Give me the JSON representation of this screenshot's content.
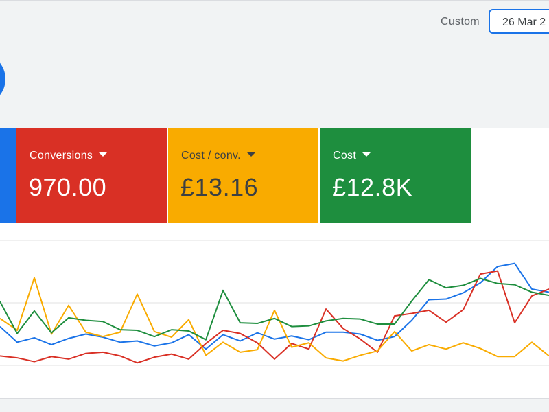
{
  "header": {
    "date_mode_label": "Custom",
    "date_range_value": "26 Mar 2"
  },
  "scorecards": [
    {
      "label": "",
      "value": "",
      "color": "#1a73e8"
    },
    {
      "label": "Conversions",
      "value": "970.00",
      "color": "#d93025"
    },
    {
      "label": "Cost / conv.",
      "value": "£13.16",
      "color": "#f9ab00"
    },
    {
      "label": "Cost",
      "value": "£12.8K",
      "color": "#1e8e3e"
    }
  ],
  "icons": {
    "scorecard_dropdown": "caret-down-icon",
    "fab": "circle-button-icon"
  },
  "chart_data": {
    "type": "line",
    "x": [
      0,
      1,
      2,
      3,
      4,
      5,
      6,
      7,
      8,
      9,
      10,
      11,
      12,
      13,
      14,
      15,
      16,
      17,
      18,
      19,
      20,
      21,
      22,
      23,
      24,
      25,
      26,
      27,
      28,
      29,
      30,
      31,
      32
    ],
    "grid": true,
    "legend": "none",
    "series": [
      {
        "color": "#1a73e8",
        "values": [
          6.2,
          3.7,
          4.4,
          3.3,
          4.3,
          5.0,
          4.5,
          3.7,
          3.9,
          3.1,
          3.6,
          4.9,
          2.6,
          4.9,
          3.9,
          5.2,
          4.2,
          4.7,
          4.1,
          5.3,
          5.3,
          5.0,
          4.0,
          4.6,
          7.2,
          10.5,
          10.6,
          11.6,
          13.2,
          15.8,
          16.3,
          12.2,
          11.7
        ]
      },
      {
        "color": "#d93025",
        "values": [
          1.5,
          1.2,
          0.6,
          1.4,
          1.0,
          1.9,
          2.1,
          1.5,
          0.4,
          1.3,
          1.8,
          1.0,
          3.5,
          5.6,
          5.1,
          3.6,
          1.0,
          3.5,
          2.6,
          9.0,
          5.9,
          4.2,
          2.1,
          7.9,
          8.3,
          8.8,
          6.9,
          8.9,
          14.6,
          15.1,
          6.8,
          11.1,
          12.2
        ]
      },
      {
        "color": "#f9ab00",
        "values": [
          7.5,
          5.6,
          14.0,
          5.0,
          9.6,
          5.3,
          4.6,
          5.3,
          11.4,
          5.4,
          4.5,
          7.3,
          1.6,
          3.7,
          2.1,
          2.5,
          8.8,
          2.9,
          3.6,
          1.2,
          0.7,
          1.6,
          2.3,
          5.4,
          2.3,
          3.3,
          2.6,
          3.6,
          2.7,
          1.4,
          1.4,
          3.7,
          1.5
        ]
      },
      {
        "color": "#1e8e3e",
        "values": [
          10.2,
          5.1,
          8.7,
          5.2,
          7.6,
          7.2,
          7.0,
          5.7,
          5.6,
          4.6,
          5.7,
          5.5,
          4.1,
          12.0,
          6.8,
          6.7,
          7.5,
          6.2,
          6.3,
          7.1,
          7.5,
          7.4,
          6.6,
          6.6,
          10.3,
          13.7,
          12.4,
          12.8,
          13.9,
          13.1,
          12.9,
          11.7,
          11.2
        ]
      }
    ]
  }
}
